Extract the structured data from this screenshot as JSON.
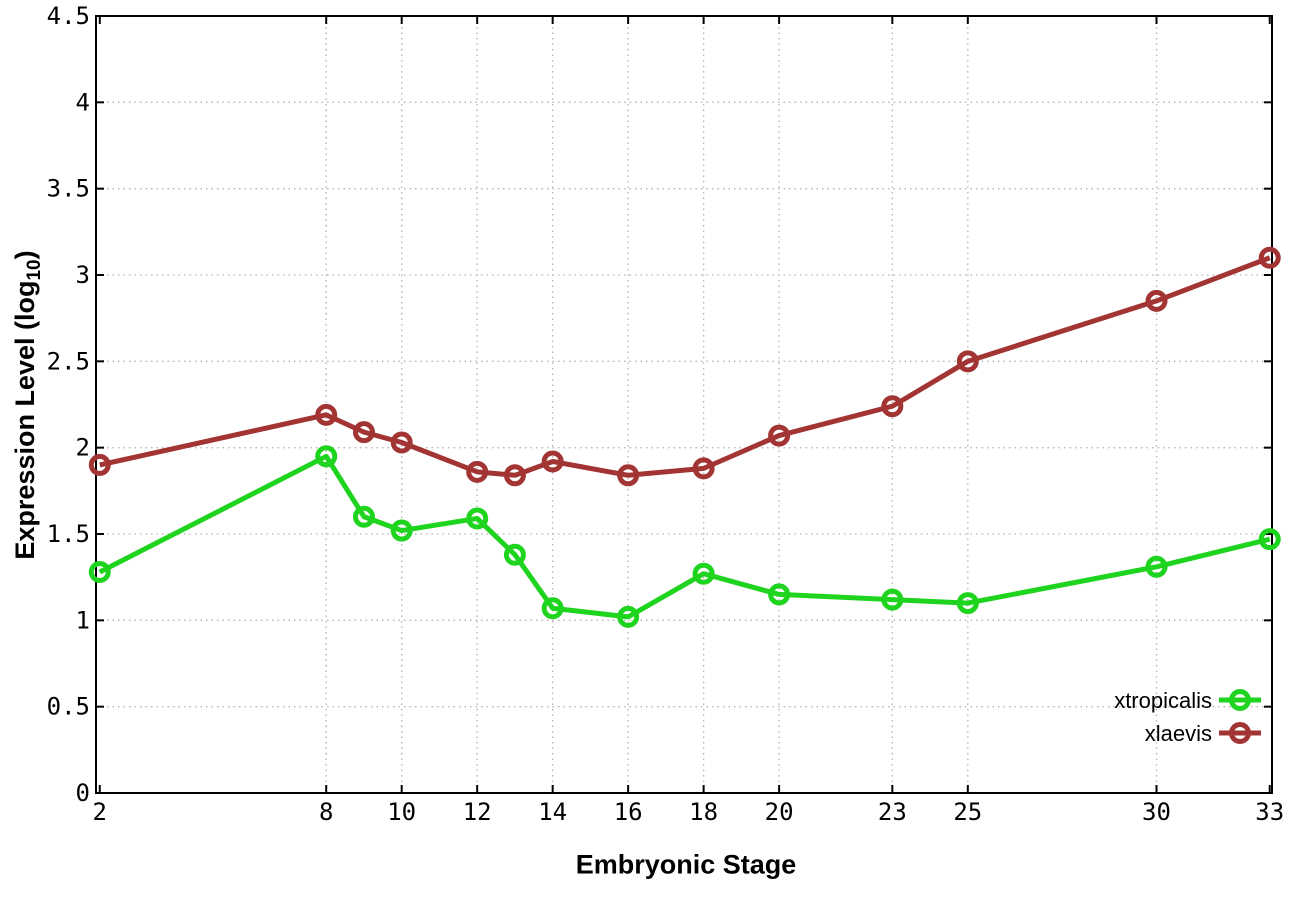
{
  "colors": {
    "background": "#ffffff",
    "axis": "#000000",
    "grid": "#b4b4b4",
    "text": "#000000"
  },
  "chart_data": {
    "type": "line",
    "title": "",
    "xlabel": "Embryonic Stage",
    "ylabel": "Expression Level (log10)",
    "ylabel_parts": {
      "base": "Expression Level (log",
      "sub": "10",
      "close": ")"
    },
    "x": [
      2,
      8,
      9,
      10,
      12,
      13,
      14,
      16,
      18,
      20,
      23,
      25,
      30,
      33
    ],
    "xticks": [
      2,
      8,
      10,
      12,
      14,
      16,
      18,
      20,
      23,
      25,
      30,
      33
    ],
    "xtick_labels": [
      "2",
      "8",
      "10",
      "12",
      "14",
      "16",
      "18",
      "20",
      "23",
      "25",
      "30",
      "33"
    ],
    "yticks": [
      0,
      0.5,
      1,
      1.5,
      2,
      2.5,
      3,
      3.5,
      4,
      4.5
    ],
    "ytick_labels": [
      "0",
      "0.5",
      "1",
      "1.5",
      "2",
      "2.5",
      "3",
      "3.5",
      "4",
      "4.5"
    ],
    "xlim": [
      1.9,
      33.06
    ],
    "ylim": [
      0,
      4.5
    ],
    "grid": true,
    "legend_position": "bottom-right",
    "series": [
      {
        "name": "xtropicalis",
        "color": "#1ed41e",
        "values": [
          1.28,
          1.95,
          1.6,
          1.52,
          1.59,
          1.38,
          1.07,
          1.02,
          1.27,
          1.15,
          1.12,
          1.1,
          1.31,
          1.47
        ]
      },
      {
        "name": "xlaevis",
        "color": "#a33434",
        "values": [
          1.9,
          2.19,
          2.09,
          2.03,
          1.86,
          1.84,
          1.92,
          1.84,
          1.88,
          2.07,
          2.24,
          2.5,
          2.85,
          3.1
        ]
      }
    ]
  }
}
